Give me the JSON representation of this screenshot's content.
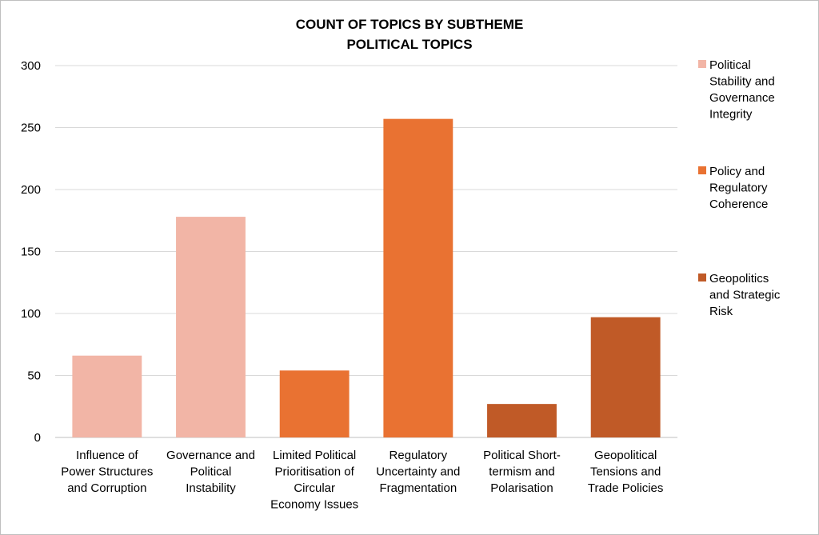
{
  "chart_data": {
    "type": "bar",
    "title": "COUNT OF TOPICS BY SUBTHEME",
    "subtitle": "POLITICAL TOPICS",
    "xlabel": "",
    "ylabel": "",
    "ylim": [
      0,
      300
    ],
    "yticks": [
      0,
      50,
      100,
      150,
      200,
      250,
      300
    ],
    "grid": true,
    "legend_position": "right",
    "categories": [
      "Influence of Power Structures and Corruption",
      "Governance and Political Instability",
      "Limited Political Prioritisation of Circular Economy Issues",
      "Regulatory Uncertainty and Fragmentation",
      "Political Short-termism and Polarisation",
      "Geopolitical Tensions and Trade Policies"
    ],
    "category_lines": [
      [
        "Influence of",
        "Power Structures",
        "and Corruption"
      ],
      [
        "Governance and",
        "Political",
        "Instability"
      ],
      [
        "Limited Political",
        "Prioritisation of",
        "Circular",
        "Economy Issues"
      ],
      [
        "Regulatory",
        "Uncertainty and",
        "Fragmentation"
      ],
      [
        "Political Short-",
        "termism and",
        "Polarisation"
      ],
      [
        "Geopolitical",
        "Tensions and",
        "Trade Policies"
      ]
    ],
    "values": [
      66,
      178,
      54,
      257,
      27,
      97
    ],
    "bar_groups": [
      0,
      0,
      1,
      1,
      2,
      2
    ],
    "series": [
      {
        "name": "Political Stability and Governance Integrity",
        "color": "#f2b5a6",
        "lines": [
          "Political",
          "Stability and",
          "Governance",
          "Integrity"
        ]
      },
      {
        "name": "Policy and Regulatory Coherence",
        "color": "#e97232",
        "lines": [
          "Policy and",
          "Regulatory",
          "Coherence"
        ]
      },
      {
        "name": "Geopolitics and Strategic Risk",
        "color": "#c05a27",
        "lines": [
          "Geopolitics",
          "and Strategic",
          "Risk"
        ]
      }
    ],
    "gridline_color": "#d9d9d9",
    "axis_color": "#bfbfbf"
  }
}
